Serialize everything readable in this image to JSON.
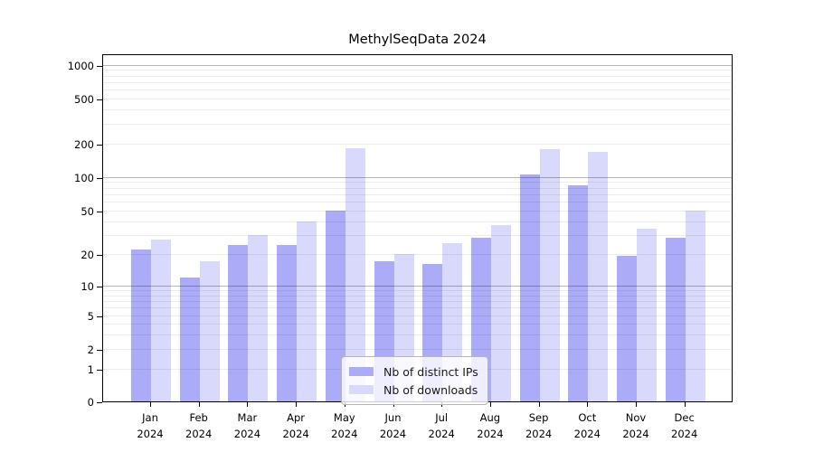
{
  "chart_data": {
    "type": "bar",
    "title": "MethylSeqData 2024",
    "months": [
      "Jan",
      "Feb",
      "Mar",
      "Apr",
      "May",
      "Jun",
      "Jul",
      "Aug",
      "Sep",
      "Oct",
      "Nov",
      "Dec"
    ],
    "year": "2024",
    "series": [
      {
        "name": "Nb of distinct IPs",
        "color": "#ababf7",
        "values": [
          22,
          12,
          24,
          24,
          50,
          17,
          16,
          28,
          105,
          84,
          19,
          28
        ]
      },
      {
        "name": "Nb of downloads",
        "color": "#d9d9fb",
        "values": [
          27,
          17,
          30,
          40,
          181,
          20,
          25,
          37,
          177,
          168,
          34,
          50
        ]
      }
    ],
    "y_scale": "log10(value+1)",
    "y_ticks": [
      0,
      1,
      2,
      5,
      10,
      20,
      50,
      100,
      200,
      500,
      1000
    ],
    "ylim": [
      0,
      1200
    ],
    "grid": true,
    "legend_position": "inside-bottom-center",
    "xlabel": "",
    "ylabel": ""
  }
}
